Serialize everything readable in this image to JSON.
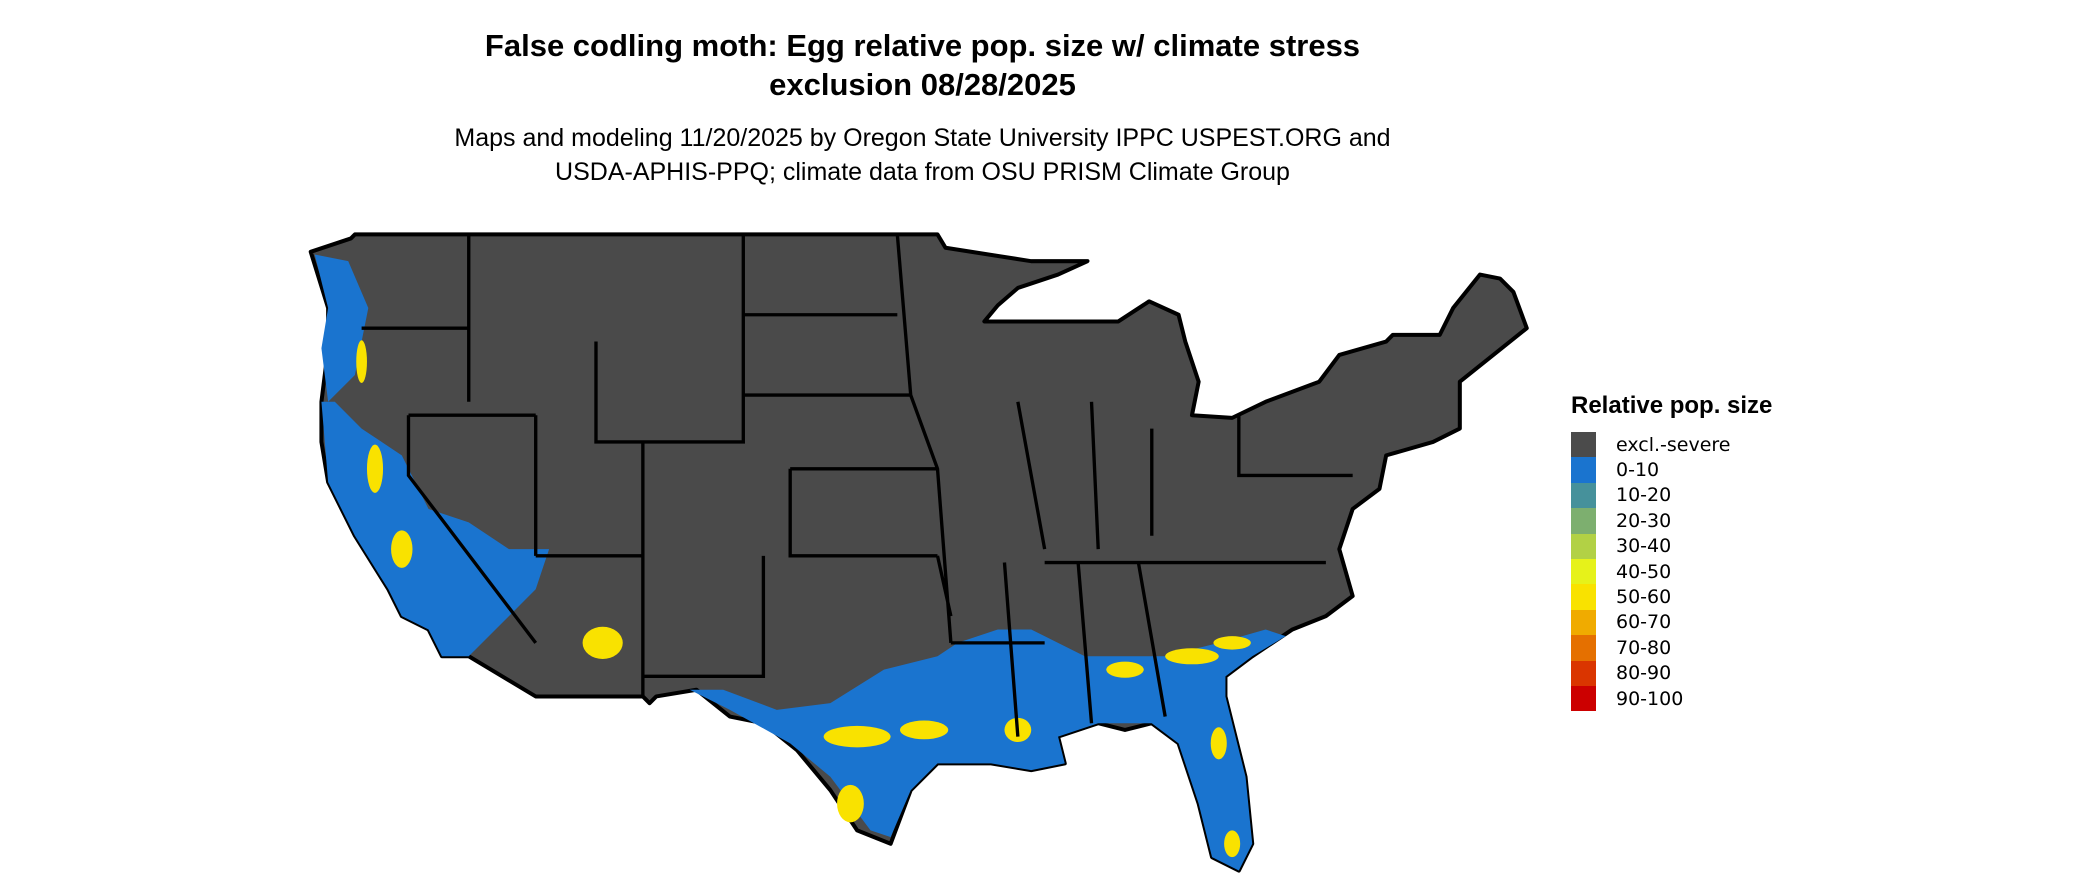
{
  "title_line1": "False codling moth: Egg relative pop. size w/ climate stress",
  "title_line2": "exclusion 08/28/2025",
  "subtitle_line1": "Maps and modeling 11/20/2025 by Oregon State University IPPC USPEST.ORG and",
  "subtitle_line2": "USDA-APHIS-PPQ; climate data from OSU PRISM Climate Group",
  "map": {
    "region": "Contiguous United States",
    "base_color": "#4a4a4a",
    "border_color": "#000000"
  },
  "legend": {
    "title": "Relative pop. size",
    "items": [
      {
        "label": "excl.-severe",
        "color": "#4b4b4b"
      },
      {
        "label": "0-10",
        "color": "#1a74cf"
      },
      {
        "label": "10-20",
        "color": "#46919b"
      },
      {
        "label": "20-30",
        "color": "#7daf6f"
      },
      {
        "label": "30-40",
        "color": "#b2d145"
      },
      {
        "label": "40-50",
        "color": "#e6f21a"
      },
      {
        "label": "50-60",
        "color": "#f9e200"
      },
      {
        "label": "60-70",
        "color": "#f0ab00"
      },
      {
        "label": "70-80",
        "color": "#e57000"
      },
      {
        "label": "80-90",
        "color": "#da3500"
      },
      {
        "label": "90-100",
        "color": "#cc0000"
      }
    ]
  }
}
